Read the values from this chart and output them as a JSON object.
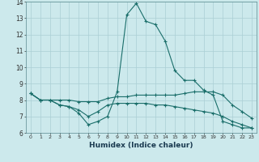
{
  "xlabel": "Humidex (Indice chaleur)",
  "bg_color": "#cce9ec",
  "grid_color": "#aacfd4",
  "line_color": "#1a6e6a",
  "xlim": [
    -0.5,
    23.5
  ],
  "ylim": [
    6,
    14
  ],
  "yticks": [
    6,
    7,
    8,
    9,
    10,
    11,
    12,
    13,
    14
  ],
  "xticks": [
    0,
    1,
    2,
    3,
    4,
    5,
    6,
    7,
    8,
    9,
    10,
    11,
    12,
    13,
    14,
    15,
    16,
    17,
    18,
    19,
    20,
    21,
    22,
    23
  ],
  "curve1_x": [
    0,
    1,
    2,
    3,
    4,
    5,
    6,
    7,
    8,
    9,
    10,
    11,
    12,
    13,
    14,
    15,
    16,
    17,
    18,
    19,
    20,
    21,
    22,
    23
  ],
  "curve1_y": [
    8.4,
    8.0,
    8.0,
    7.7,
    7.6,
    7.2,
    6.5,
    6.7,
    7.0,
    8.5,
    13.2,
    13.9,
    12.8,
    12.6,
    11.6,
    9.8,
    9.2,
    9.2,
    8.6,
    8.3,
    6.7,
    6.5,
    6.3,
    6.3
  ],
  "curve2_x": [
    0,
    1,
    2,
    3,
    4,
    5,
    6,
    7,
    8,
    9,
    10,
    11,
    12,
    13,
    14,
    15,
    16,
    17,
    18,
    19,
    20,
    21,
    22,
    23
  ],
  "curve2_y": [
    8.4,
    8.0,
    8.0,
    8.0,
    8.0,
    7.9,
    7.9,
    7.9,
    8.1,
    8.2,
    8.2,
    8.3,
    8.3,
    8.3,
    8.3,
    8.3,
    8.4,
    8.5,
    8.5,
    8.5,
    8.3,
    7.7,
    7.3,
    6.9
  ],
  "curve3_x": [
    0,
    1,
    2,
    3,
    4,
    5,
    6,
    7,
    8,
    9,
    10,
    11,
    12,
    13,
    14,
    15,
    16,
    17,
    18,
    19,
    20,
    21,
    22,
    23
  ],
  "curve3_y": [
    8.4,
    8.0,
    8.0,
    7.7,
    7.6,
    7.4,
    7.0,
    7.3,
    7.7,
    7.8,
    7.8,
    7.8,
    7.8,
    7.7,
    7.7,
    7.6,
    7.5,
    7.4,
    7.3,
    7.2,
    7.0,
    6.7,
    6.5,
    6.3
  ]
}
